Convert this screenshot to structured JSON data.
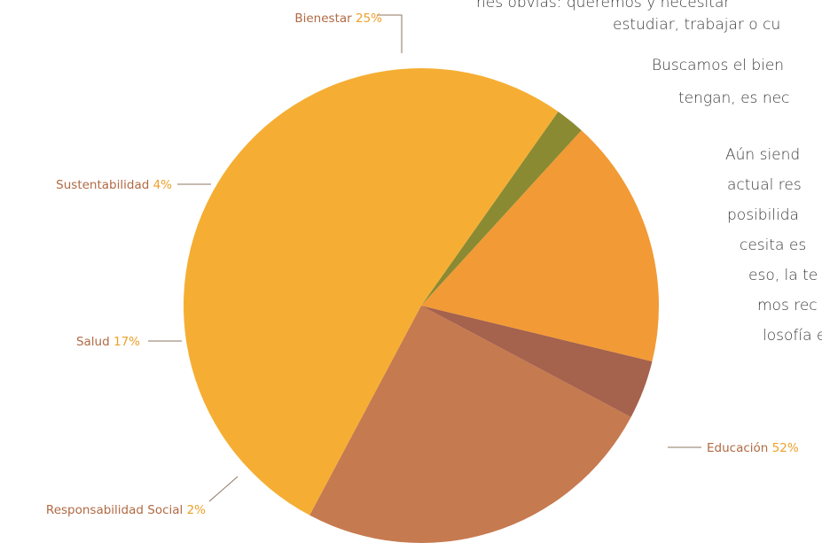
{
  "chart_data": {
    "type": "pie",
    "categories": [
      "Bienestar",
      "Sustentabilidad",
      "Salud",
      "Responsabilidad Social",
      "Educación"
    ],
    "values": [
      25,
      4,
      17,
      2,
      52
    ],
    "value_labels": [
      "25%",
      "4%",
      "17%",
      "2%",
      "52%"
    ],
    "colors": [
      "#c67a4f",
      "#a5624d",
      "#f29a35",
      "#8a8a32",
      "#f5ae33"
    ],
    "legend": "none",
    "title": ""
  },
  "body_text": {
    "lines": [
      "nes obvias: queremos y necesitar",
      "estudiar, trabajar o cu",
      "Buscamos el bien",
      "tengan, es nec",
      "Aún siend",
      "actual res",
      "posibilida",
      "cesita es",
      "eso, la te",
      "mos rec",
      "losofía e"
    ]
  }
}
